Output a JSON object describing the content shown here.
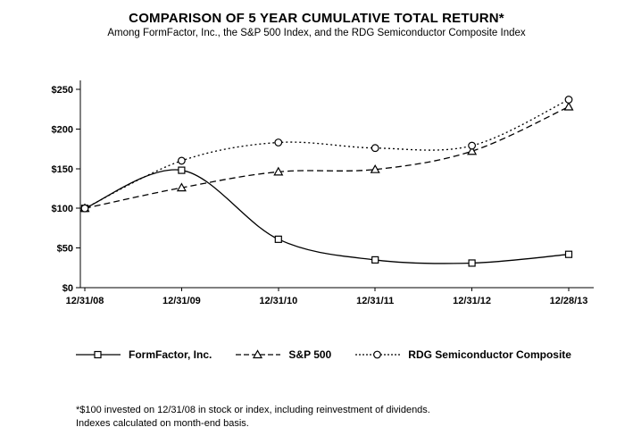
{
  "chart_data": {
    "type": "line",
    "title": "COMPARISON OF 5 YEAR CUMULATIVE TOTAL RETURN*",
    "subtitle": "Among FormFactor, Inc., the S&P 500 Index, and the RDG Semiconductor Composite Index",
    "x": [
      "12/31/08",
      "12/31/09",
      "12/31/10",
      "12/31/11",
      "12/31/12",
      "12/28/13"
    ],
    "series": [
      {
        "name": "FormFactor, Inc.",
        "marker": "square",
        "dash": "solid",
        "values": [
          100,
          148,
          61,
          35,
          31,
          42
        ]
      },
      {
        "name": "S&P 500",
        "marker": "triangle",
        "dash": "dashed",
        "values": [
          100,
          126,
          146,
          149,
          172,
          228
        ]
      },
      {
        "name": "RDG Semiconductor Composite",
        "marker": "circle",
        "dash": "dotted",
        "values": [
          100,
          160,
          183,
          176,
          179,
          237
        ]
      }
    ],
    "ylim": [
      0,
      250
    ],
    "ytick_step": 50,
    "ytick_labels": [
      "$0",
      "$50",
      "$100",
      "$150",
      "$200",
      "$250"
    ],
    "grid": "off",
    "legend_position": "bottom",
    "line_color": "#000000"
  },
  "footnote": {
    "line1": "*$100 invested on 12/31/08 in stock or index, including reinvestment of dividends.",
    "line2": "Indexes calculated on month-end basis."
  }
}
